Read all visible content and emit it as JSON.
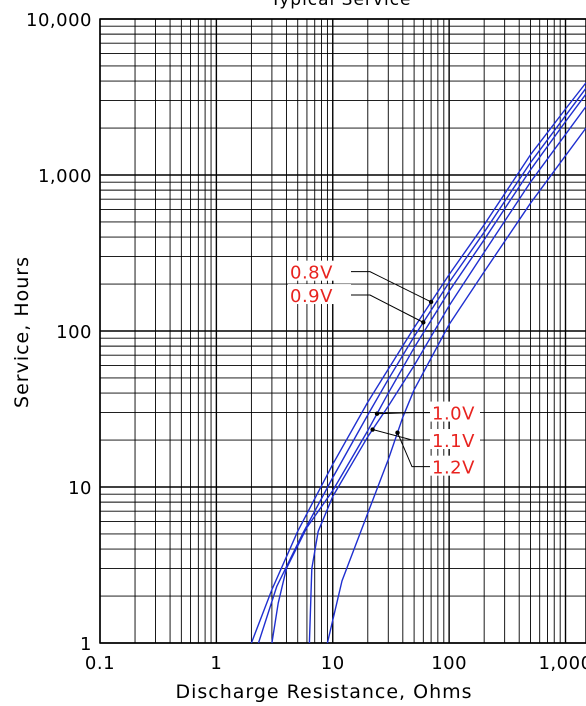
{
  "chart_data": {
    "type": "line",
    "title": "Typical Service",
    "xlabel": "Discharge Resistance, Ohms",
    "ylabel": "Service, Hours",
    "xscale": "log",
    "yscale": "log",
    "xlim": [
      0.1,
      1500
    ],
    "ylim": [
      1,
      10000
    ],
    "grid": true,
    "line_color": "#1f2fd0",
    "label_color": "#e8231f",
    "x_tick_labels": [
      "0.1",
      "1",
      "10",
      "100",
      "1,000"
    ],
    "y_tick_labels": [
      "1",
      "10",
      "100",
      "1,000",
      "10,000"
    ],
    "series": [
      {
        "name": "0.8V",
        "x": [
          2,
          3,
          5,
          10,
          20,
          30,
          50,
          100,
          200,
          500,
          1000,
          1500
        ],
        "y": [
          1,
          2.2,
          5.2,
          14,
          35,
          57,
          105,
          230,
          480,
          1350,
          2650,
          3900
        ]
      },
      {
        "name": "0.9V",
        "x": [
          2.3,
          3.3,
          5.5,
          10,
          20,
          30,
          50,
          100,
          200,
          500,
          1000,
          1500
        ],
        "y": [
          1,
          2.3,
          5,
          11.5,
          29,
          49,
          92,
          205,
          430,
          1200,
          2400,
          3600
        ]
      },
      {
        "name": "1.0V",
        "x": [
          3,
          3.4,
          4,
          6,
          10,
          20,
          30,
          50,
          100,
          200,
          500,
          1000,
          1500
        ],
        "y": [
          1,
          1.8,
          3,
          5.5,
          9.5,
          23,
          40,
          78,
          180,
          385,
          1080,
          2200,
          3300
        ]
      },
      {
        "name": "1.1V",
        "x": [
          6.3,
          6.6,
          7.5,
          10,
          20,
          30,
          50,
          100,
          200,
          500,
          1000,
          1500
        ],
        "y": [
          1,
          3,
          5.2,
          8.7,
          21,
          33,
          60,
          145,
          320,
          900,
          1820,
          2750
        ]
      },
      {
        "name": "1.2V",
        "x": [
          9,
          12,
          20,
          30,
          40,
          50,
          100,
          200,
          500,
          1000,
          1500
        ],
        "y": [
          1,
          2.5,
          6.8,
          15,
          28,
          42,
          110,
          240,
          660,
          1330,
          2000
        ]
      }
    ],
    "callouts": [
      {
        "label": "0.8V",
        "series": 0,
        "at_x": 70,
        "side": "left",
        "label_y": 240
      },
      {
        "label": "0.9V",
        "series": 1,
        "at_x": 60,
        "side": "left",
        "label_y": 170
      },
      {
        "label": "1.0V",
        "series": 2,
        "at_x": 24,
        "side": "right",
        "label_y": 30
      },
      {
        "label": "1.1V",
        "series": 3,
        "at_x": 22,
        "side": "right",
        "label_y": 20
      },
      {
        "label": "1.2V",
        "series": 4,
        "at_x": 36,
        "side": "right",
        "label_y": 13.5
      }
    ]
  }
}
